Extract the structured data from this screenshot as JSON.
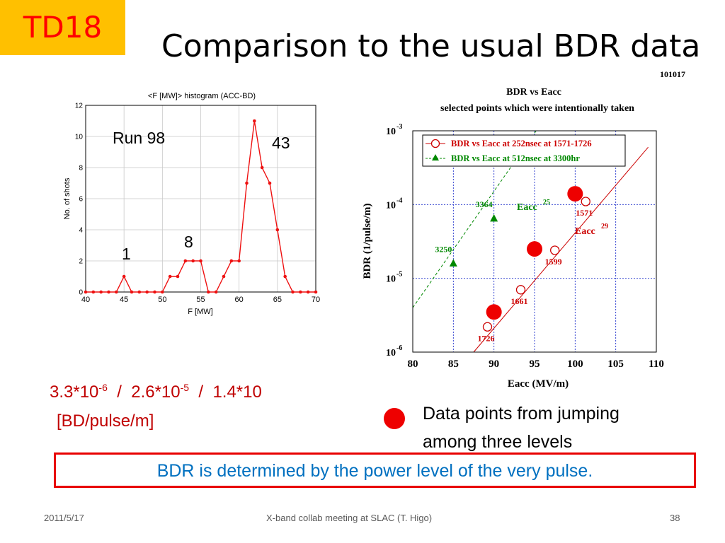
{
  "slide": {
    "tag": "TD18",
    "title": "Comparison to the usual BDR data",
    "date_code": "101017",
    "footer_date": "2011/5/17",
    "footer_center": "X-band collab meeting at SLAC (T. Higo)",
    "footer_page": "38"
  },
  "annotations": {
    "run": "Run 98",
    "count_43": "43",
    "count_8": "8",
    "count_1": "1",
    "bdr_values": {
      "v1_mant": "3.3*10",
      "v1_exp": "-6",
      "sep1": "/",
      "v2_mant": "2.6*10",
      "v2_exp": "-5",
      "sep2": "/",
      "v3_mant": "1.4*10"
    },
    "unit": "[BD/pulse/m]",
    "legend_note_line1": "Data points from jumping",
    "legend_note_line2": "among three levels",
    "conclusion": "BDR is determined by the power level of the very pulse."
  },
  "chart_data": [
    {
      "type": "line",
      "title": "<F [MW]> histogram (ACC-BD)",
      "xlabel": "F [MW]",
      "ylabel": "No. of shots",
      "xlim": [
        40,
        70
      ],
      "ylim": [
        0,
        12
      ],
      "xticks": [
        40,
        45,
        50,
        55,
        60,
        65,
        70
      ],
      "yticks": [
        0,
        2,
        4,
        6,
        8,
        10,
        12
      ],
      "grid": true,
      "color": "#ee1111",
      "x": [
        40,
        41,
        42,
        43,
        44,
        45,
        46,
        47,
        48,
        49,
        50,
        51,
        52,
        53,
        54,
        55,
        56,
        57,
        58,
        59,
        60,
        61,
        62,
        63,
        64,
        65,
        66,
        67,
        68,
        69,
        70
      ],
      "y": [
        0,
        0,
        0,
        0,
        0,
        1,
        0,
        0,
        0,
        0,
        0,
        1,
        1,
        2,
        2,
        2,
        0,
        0,
        1,
        2,
        2,
        7,
        11,
        8,
        7,
        4,
        1,
        0,
        0,
        0,
        0
      ]
    },
    {
      "type": "scatter",
      "title": "BDR vs Eacc",
      "subtitle": "selected  points which were intentionally taken",
      "xlabel": "Eacc (MV/m)",
      "ylabel": "BDR (1/pulse/m)",
      "xlim": [
        80,
        110
      ],
      "ylim": [
        1e-06,
        0.001
      ],
      "yscale": "log",
      "xticks": [
        80,
        85,
        90,
        95,
        100,
        105,
        110
      ],
      "yticks": [
        {
          "value": 1e-06,
          "mant": "10",
          "exp": "-6"
        },
        {
          "value": 1e-05,
          "mant": "10",
          "exp": "-5"
        },
        {
          "value": 0.0001,
          "mant": "10",
          "exp": "-4"
        },
        {
          "value": 0.001,
          "mant": "10",
          "exp": "-3"
        }
      ],
      "grid": true,
      "legend_position": "top-left",
      "series": [
        {
          "name": "BDR vs Eacc at 252nsec at 1571-1726",
          "color": "#cc0000",
          "marker": "open-circle",
          "fit_label": "Eacc",
          "fit_exp": "29",
          "fit_line": [
            {
              "x": 87.5,
              "y": 1e-06
            },
            {
              "x": 109,
              "y": 0.0006
            }
          ],
          "points": [
            {
              "x": 89.2,
              "y": 2.2e-06,
              "label": "1726"
            },
            {
              "x": 93.3,
              "y": 7e-06,
              "label": "1661"
            },
            {
              "x": 97.5,
              "y": 2.4e-05,
              "label": "1599"
            },
            {
              "x": 101.3,
              "y": 0.00011,
              "label": "1571"
            }
          ]
        },
        {
          "name": "BDR vs Eacc at 512nsec at 3300hr",
          "color": "#008800",
          "marker": "filled-triangle",
          "fit_label": "Eacc",
          "fit_exp": "25",
          "fit_line": [
            {
              "x": 80,
              "y": 4e-06
            },
            {
              "x": 95.2,
              "y": 0.001
            }
          ],
          "points": [
            {
              "x": 85,
              "y": 1.6e-05,
              "label": "3250"
            },
            {
              "x": 90,
              "y": 6.5e-05,
              "label": "3364"
            }
          ]
        },
        {
          "name": "Data points from jumping among three levels",
          "color": "#ee0000",
          "marker": "large-filled-circle",
          "points": [
            {
              "x": 90,
              "y": 3.5e-06
            },
            {
              "x": 95,
              "y": 2.5e-05
            },
            {
              "x": 100,
              "y": 0.00014
            }
          ]
        }
      ]
    }
  ]
}
